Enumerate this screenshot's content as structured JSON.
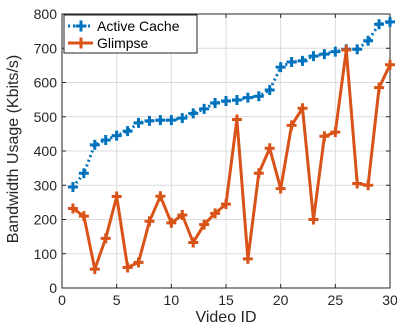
{
  "chart_data": {
    "type": "line",
    "xlabel": "Video ID",
    "ylabel": "Bandwidth Usage (Kbits/s)",
    "xlim": [
      0,
      30
    ],
    "ylim": [
      0,
      800
    ],
    "xticks": [
      0,
      5,
      10,
      15,
      20,
      25,
      30
    ],
    "yticks": [
      0,
      100,
      200,
      300,
      400,
      500,
      600,
      700,
      800
    ],
    "grid": true,
    "legend_position": "top-left",
    "x": [
      1,
      2,
      3,
      4,
      5,
      6,
      7,
      8,
      9,
      10,
      11,
      12,
      13,
      14,
      15,
      16,
      17,
      18,
      19,
      20,
      21,
      22,
      23,
      24,
      25,
      26,
      27,
      28,
      29,
      30
    ],
    "series": [
      {
        "name": "Active Cache",
        "color": "#0072BD",
        "style": "dotted-plus",
        "values": [
          295,
          335,
          418,
          432,
          445,
          458,
          482,
          488,
          490,
          490,
          496,
          510,
          523,
          540,
          546,
          549,
          556,
          560,
          578,
          645,
          660,
          663,
          677,
          683,
          690,
          697,
          697,
          722,
          770,
          777
        ]
      },
      {
        "name": "Glimpse",
        "color": "#D95319",
        "style": "solid-plus",
        "values": [
          232,
          210,
          55,
          145,
          267,
          60,
          75,
          195,
          268,
          190,
          213,
          133,
          185,
          218,
          245,
          492,
          85,
          335,
          408,
          290,
          475,
          525,
          200,
          443,
          455,
          695,
          305,
          300,
          585,
          652
        ]
      }
    ]
  }
}
